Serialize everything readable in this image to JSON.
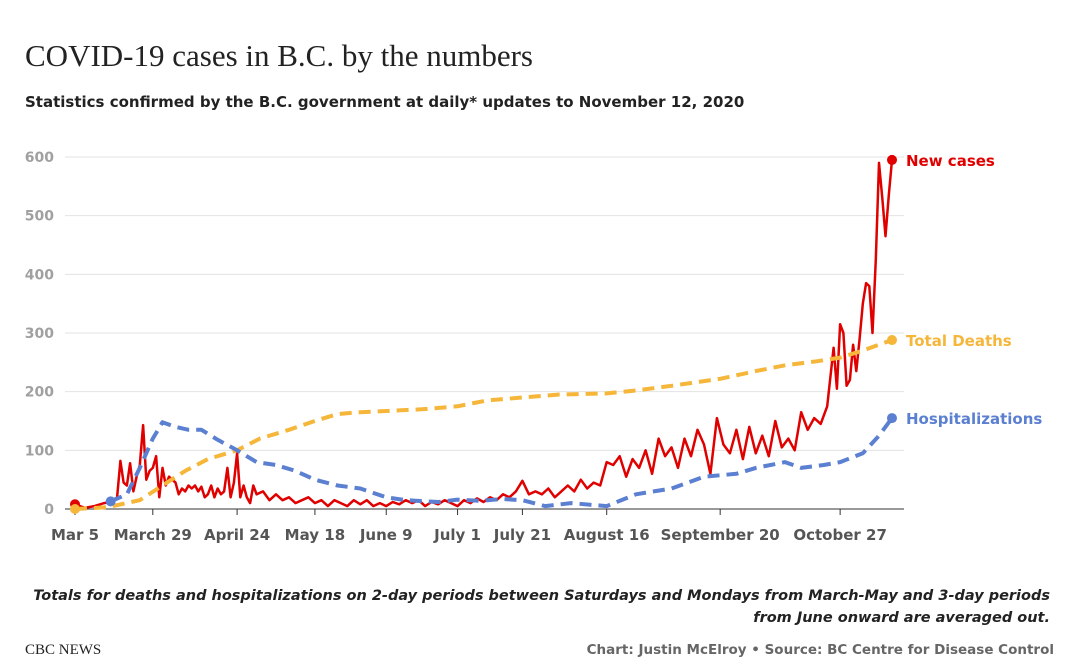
{
  "header": {
    "title": "COVID-19 cases in B.C. by the numbers",
    "subtitle": "Statistics confirmed by the B.C. government at daily* updates to November 12, 2020"
  },
  "footer": {
    "note": "Totals for deaths and hospitalizations on 2-day periods between Saturdays and Mondays from March-May and 3-day periods from June onward are averaged out.",
    "brand": "CBC NEWS",
    "credit": "Chart: Justin McElroy • Source: BC Centre for Disease Control"
  },
  "chart_data": {
    "type": "line",
    "title": "COVID-19 cases in B.C. by the numbers",
    "subtitle": "Statistics confirmed by the B.C. government at daily* updates to November 12, 2020",
    "xlabel": "",
    "ylabel": "",
    "ylim": [
      0,
      600
    ],
    "xlim": [
      "2020-03-05",
      "2020-11-12"
    ],
    "yticks": [
      0,
      100,
      200,
      300,
      400,
      500,
      600
    ],
    "xticks": [
      {
        "date": "2020-03-05",
        "label": "Mar 5"
      },
      {
        "date": "2020-03-29",
        "label": "March 29"
      },
      {
        "date": "2020-04-24",
        "label": "April 24"
      },
      {
        "date": "2020-05-18",
        "label": "May 18"
      },
      {
        "date": "2020-06-09",
        "label": "June 9"
      },
      {
        "date": "2020-07-01",
        "label": "July 1"
      },
      {
        "date": "2020-07-21",
        "label": "July 21"
      },
      {
        "date": "2020-08-16",
        "label": "August 16"
      },
      {
        "date": "2020-09-20",
        "label": "September 20"
      },
      {
        "date": "2020-10-27",
        "label": "October 27"
      }
    ],
    "grid": true,
    "series": [
      {
        "name": "New cases",
        "color": "#e00000",
        "style": "solid",
        "points": [
          [
            "2020-03-05",
            8
          ],
          [
            "2020-03-08",
            2
          ],
          [
            "2020-03-11",
            5
          ],
          [
            "2020-03-14",
            10
          ],
          [
            "2020-03-16",
            12
          ],
          [
            "2020-03-18",
            20
          ],
          [
            "2020-03-19",
            82
          ],
          [
            "2020-03-20",
            45
          ],
          [
            "2020-03-21",
            40
          ],
          [
            "2020-03-22",
            78
          ],
          [
            "2020-03-23",
            30
          ],
          [
            "2020-03-24",
            55
          ],
          [
            "2020-03-25",
            75
          ],
          [
            "2020-03-26",
            143
          ],
          [
            "2020-03-27",
            50
          ],
          [
            "2020-03-28",
            65
          ],
          [
            "2020-03-29",
            70
          ],
          [
            "2020-03-30",
            90
          ],
          [
            "2020-03-31",
            20
          ],
          [
            "2020-04-01",
            70
          ],
          [
            "2020-04-02",
            40
          ],
          [
            "2020-04-03",
            55
          ],
          [
            "2020-04-04",
            50
          ],
          [
            "2020-04-05",
            45
          ],
          [
            "2020-04-06",
            25
          ],
          [
            "2020-04-07",
            35
          ],
          [
            "2020-04-08",
            30
          ],
          [
            "2020-04-09",
            40
          ],
          [
            "2020-04-10",
            35
          ],
          [
            "2020-04-11",
            40
          ],
          [
            "2020-04-12",
            30
          ],
          [
            "2020-04-13",
            38
          ],
          [
            "2020-04-14",
            20
          ],
          [
            "2020-04-15",
            25
          ],
          [
            "2020-04-16",
            40
          ],
          [
            "2020-04-17",
            20
          ],
          [
            "2020-04-18",
            35
          ],
          [
            "2020-04-19",
            25
          ],
          [
            "2020-04-20",
            30
          ],
          [
            "2020-04-21",
            70
          ],
          [
            "2020-04-22",
            20
          ],
          [
            "2020-04-23",
            45
          ],
          [
            "2020-04-24",
            95
          ],
          [
            "2020-04-25",
            20
          ],
          [
            "2020-04-26",
            40
          ],
          [
            "2020-04-27",
            20
          ],
          [
            "2020-04-28",
            10
          ],
          [
            "2020-04-29",
            40
          ],
          [
            "2020-04-30",
            25
          ],
          [
            "2020-05-02",
            30
          ],
          [
            "2020-05-04",
            15
          ],
          [
            "2020-05-06",
            25
          ],
          [
            "2020-05-08",
            15
          ],
          [
            "2020-05-10",
            20
          ],
          [
            "2020-05-12",
            10
          ],
          [
            "2020-05-14",
            15
          ],
          [
            "2020-05-16",
            20
          ],
          [
            "2020-05-18",
            10
          ],
          [
            "2020-05-20",
            15
          ],
          [
            "2020-05-22",
            5
          ],
          [
            "2020-05-24",
            15
          ],
          [
            "2020-05-26",
            10
          ],
          [
            "2020-05-28",
            5
          ],
          [
            "2020-05-30",
            15
          ],
          [
            "2020-06-01",
            8
          ],
          [
            "2020-06-03",
            15
          ],
          [
            "2020-06-05",
            5
          ],
          [
            "2020-06-07",
            10
          ],
          [
            "2020-06-09",
            5
          ],
          [
            "2020-06-11",
            12
          ],
          [
            "2020-06-13",
            8
          ],
          [
            "2020-06-15",
            15
          ],
          [
            "2020-06-17",
            10
          ],
          [
            "2020-06-19",
            15
          ],
          [
            "2020-06-21",
            5
          ],
          [
            "2020-06-23",
            12
          ],
          [
            "2020-06-25",
            8
          ],
          [
            "2020-06-27",
            15
          ],
          [
            "2020-06-29",
            10
          ],
          [
            "2020-07-01",
            5
          ],
          [
            "2020-07-03",
            15
          ],
          [
            "2020-07-05",
            10
          ],
          [
            "2020-07-07",
            18
          ],
          [
            "2020-07-09",
            12
          ],
          [
            "2020-07-11",
            20
          ],
          [
            "2020-07-13",
            15
          ],
          [
            "2020-07-15",
            25
          ],
          [
            "2020-07-17",
            20
          ],
          [
            "2020-07-19",
            30
          ],
          [
            "2020-07-21",
            48
          ],
          [
            "2020-07-23",
            25
          ],
          [
            "2020-07-25",
            30
          ],
          [
            "2020-07-27",
            25
          ],
          [
            "2020-07-29",
            35
          ],
          [
            "2020-07-31",
            20
          ],
          [
            "2020-08-02",
            30
          ],
          [
            "2020-08-04",
            40
          ],
          [
            "2020-08-06",
            30
          ],
          [
            "2020-08-08",
            50
          ],
          [
            "2020-08-10",
            35
          ],
          [
            "2020-08-12",
            45
          ],
          [
            "2020-08-14",
            40
          ],
          [
            "2020-08-16",
            80
          ],
          [
            "2020-08-18",
            75
          ],
          [
            "2020-08-20",
            90
          ],
          [
            "2020-08-22",
            55
          ],
          [
            "2020-08-24",
            85
          ],
          [
            "2020-08-26",
            70
          ],
          [
            "2020-08-28",
            100
          ],
          [
            "2020-08-30",
            60
          ],
          [
            "2020-09-01",
            120
          ],
          [
            "2020-09-03",
            90
          ],
          [
            "2020-09-05",
            105
          ],
          [
            "2020-09-07",
            70
          ],
          [
            "2020-09-09",
            120
          ],
          [
            "2020-09-11",
            90
          ],
          [
            "2020-09-13",
            135
          ],
          [
            "2020-09-15",
            110
          ],
          [
            "2020-09-17",
            60
          ],
          [
            "2020-09-19",
            155
          ],
          [
            "2020-09-21",
            110
          ],
          [
            "2020-09-23",
            95
          ],
          [
            "2020-09-25",
            135
          ],
          [
            "2020-09-27",
            85
          ],
          [
            "2020-09-29",
            140
          ],
          [
            "2020-10-01",
            95
          ],
          [
            "2020-10-03",
            125
          ],
          [
            "2020-10-05",
            90
          ],
          [
            "2020-10-07",
            150
          ],
          [
            "2020-10-09",
            105
          ],
          [
            "2020-10-11",
            120
          ],
          [
            "2020-10-13",
            100
          ],
          [
            "2020-10-15",
            165
          ],
          [
            "2020-10-17",
            135
          ],
          [
            "2020-10-19",
            155
          ],
          [
            "2020-10-21",
            145
          ],
          [
            "2020-10-23",
            175
          ],
          [
            "2020-10-25",
            275
          ],
          [
            "2020-10-26",
            205
          ],
          [
            "2020-10-27",
            315
          ],
          [
            "2020-10-28",
            300
          ],
          [
            "2020-10-29",
            210
          ],
          [
            "2020-10-30",
            220
          ],
          [
            "2020-10-31",
            280
          ],
          [
            "2020-11-01",
            235
          ],
          [
            "2020-11-02",
            290
          ],
          [
            "2020-11-03",
            350
          ],
          [
            "2020-11-04",
            385
          ],
          [
            "2020-11-05",
            380
          ],
          [
            "2020-11-06",
            300
          ],
          [
            "2020-11-07",
            425
          ],
          [
            "2020-11-08",
            590
          ],
          [
            "2020-11-09",
            530
          ],
          [
            "2020-11-10",
            465
          ],
          [
            "2020-11-11",
            535
          ],
          [
            "2020-11-12",
            595
          ]
        ]
      },
      {
        "name": "Total Deaths",
        "color": "#f5b63a",
        "style": "dashed",
        "points": [
          [
            "2020-03-05",
            0
          ],
          [
            "2020-03-15",
            3
          ],
          [
            "2020-03-25",
            15
          ],
          [
            "2020-04-01",
            40
          ],
          [
            "2020-04-08",
            65
          ],
          [
            "2020-04-15",
            85
          ],
          [
            "2020-04-24",
            100
          ],
          [
            "2020-05-01",
            120
          ],
          [
            "2020-05-10",
            135
          ],
          [
            "2020-05-18",
            150
          ],
          [
            "2020-05-25",
            162
          ],
          [
            "2020-06-01",
            165
          ],
          [
            "2020-06-09",
            167
          ],
          [
            "2020-06-20",
            170
          ],
          [
            "2020-07-01",
            175
          ],
          [
            "2020-07-10",
            185
          ],
          [
            "2020-07-21",
            190
          ],
          [
            "2020-08-01",
            195
          ],
          [
            "2020-08-16",
            197
          ],
          [
            "2020-08-25",
            202
          ],
          [
            "2020-09-05",
            210
          ],
          [
            "2020-09-20",
            222
          ],
          [
            "2020-10-01",
            235
          ],
          [
            "2020-10-10",
            245
          ],
          [
            "2020-10-20",
            252
          ],
          [
            "2020-10-27",
            258
          ],
          [
            "2020-11-03",
            270
          ],
          [
            "2020-11-12",
            288
          ]
        ]
      },
      {
        "name": "Hospitalizations",
        "color": "#5b7fd1",
        "style": "dashed",
        "points": [
          [
            "2020-03-16",
            13
          ],
          [
            "2020-03-21",
            25
          ],
          [
            "2020-03-25",
            70
          ],
          [
            "2020-03-29",
            120
          ],
          [
            "2020-04-01",
            148
          ],
          [
            "2020-04-05",
            140
          ],
          [
            "2020-04-09",
            135
          ],
          [
            "2020-04-13",
            135
          ],
          [
            "2020-04-18",
            118
          ],
          [
            "2020-04-24",
            100
          ],
          [
            "2020-04-30",
            80
          ],
          [
            "2020-05-06",
            75
          ],
          [
            "2020-05-12",
            65
          ],
          [
            "2020-05-18",
            50
          ],
          [
            "2020-05-25",
            40
          ],
          [
            "2020-06-01",
            35
          ],
          [
            "2020-06-09",
            20
          ],
          [
            "2020-06-15",
            15
          ],
          [
            "2020-06-25",
            12
          ],
          [
            "2020-07-01",
            16
          ],
          [
            "2020-07-08",
            14
          ],
          [
            "2020-07-15",
            17
          ],
          [
            "2020-07-21",
            15
          ],
          [
            "2020-07-28",
            5
          ],
          [
            "2020-08-05",
            10
          ],
          [
            "2020-08-16",
            5
          ],
          [
            "2020-08-25",
            25
          ],
          [
            "2020-09-05",
            35
          ],
          [
            "2020-09-15",
            55
          ],
          [
            "2020-09-25",
            60
          ],
          [
            "2020-10-01",
            70
          ],
          [
            "2020-10-10",
            80
          ],
          [
            "2020-10-15",
            70
          ],
          [
            "2020-10-22",
            75
          ],
          [
            "2020-10-27",
            80
          ],
          [
            "2020-11-03",
            95
          ],
          [
            "2020-11-08",
            125
          ],
          [
            "2020-11-12",
            155
          ]
        ]
      }
    ]
  }
}
